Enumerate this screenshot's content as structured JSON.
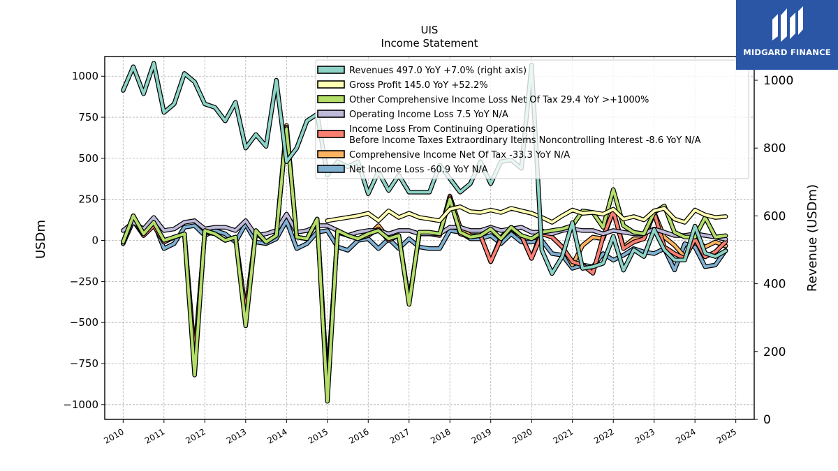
{
  "brand": {
    "name": "MIDGARD FINANCE"
  },
  "chart_data": {
    "type": "line",
    "title": "UIS",
    "subtitle": "Income Statement",
    "ylabel": "USDm",
    "ylabel_right": "Revenue (USDm)",
    "ylim": [
      -1090,
      1120
    ],
    "ylim_right": [
      0,
      1070
    ],
    "xlim": [
      2009.55,
      2025.45
    ],
    "yticks": [
      -1000,
      -750,
      -500,
      -250,
      0,
      250,
      500,
      750,
      1000
    ],
    "yticks_right": [
      0,
      200,
      400,
      600,
      800,
      1000
    ],
    "xticks": [
      "2010",
      "2011",
      "2012",
      "2013",
      "2014",
      "2015",
      "2016",
      "2017",
      "2018",
      "2019",
      "2020",
      "2021",
      "2022",
      "2023",
      "2024",
      "2025"
    ],
    "grid": true,
    "legend_position": "top-right",
    "x": [
      2010.0,
      2010.25,
      2010.5,
      2010.75,
      2011.0,
      2011.25,
      2011.5,
      2011.75,
      2012.0,
      2012.25,
      2012.5,
      2012.75,
      2013.0,
      2013.25,
      2013.5,
      2013.75,
      2014.0,
      2014.25,
      2014.5,
      2014.75,
      2015.0,
      2015.25,
      2015.5,
      2015.75,
      2016.0,
      2016.25,
      2016.5,
      2016.75,
      2017.0,
      2017.25,
      2017.5,
      2017.75,
      2018.0,
      2018.25,
      2018.5,
      2018.75,
      2019.0,
      2019.25,
      2019.5,
      2019.75,
      2020.0,
      2020.25,
      2020.5,
      2020.75,
      2021.0,
      2021.25,
      2021.5,
      2021.75,
      2022.0,
      2022.25,
      2022.5,
      2022.75,
      2023.0,
      2023.25,
      2023.5,
      2023.75,
      2024.0,
      2024.25,
      2024.5,
      2024.75
    ],
    "series": [
      {
        "name": "Revenues",
        "legend": "Revenues  497.0 YoY +7.0% (right axis)",
        "axis": "right",
        "color": "#8dd3c7",
        "values": [
          970,
          1040,
          960,
          1050,
          905,
          930,
          1020,
          995,
          930,
          920,
          880,
          935,
          800,
          840,
          805,
          1000,
          760,
          800,
          880,
          900,
          720,
          760,
          745,
          760,
          665,
          730,
          675,
          720,
          670,
          670,
          670,
          750,
          710,
          670,
          695,
          760,
          695,
          760,
          765,
          740,
          1045,
          500,
          430,
          480,
          580,
          445,
          450,
          460,
          540,
          440,
          500,
          480,
          560,
          500,
          470,
          470,
          570,
          490,
          480,
          497
        ]
      },
      {
        "name": "Gross Profit",
        "legend": "Gross Profit  145.0 YoY +52.2%",
        "color": "#ffffb3",
        "values": [
          null,
          null,
          null,
          null,
          null,
          null,
          null,
          null,
          null,
          null,
          null,
          null,
          null,
          null,
          null,
          null,
          null,
          null,
          null,
          null,
          120,
          130,
          140,
          150,
          165,
          120,
          180,
          140,
          165,
          140,
          130,
          120,
          190,
          205,
          175,
          170,
          185,
          170,
          195,
          180,
          165,
          140,
          110,
          150,
          185,
          165,
          170,
          160,
          190,
          130,
          145,
          125,
          180,
          195,
          130,
          110,
          185,
          155,
          140,
          145
        ]
      },
      {
        "name": "Other Comprehensive Loss Net Of Tax",
        "legend": "Other Comprehensive Income Loss Net Of Tax  29.4 YoY >+1000%",
        "color": "#b3de69",
        "values": [
          -10,
          150,
          40,
          110,
          0,
          20,
          40,
          -820,
          60,
          40,
          0,
          20,
          -520,
          60,
          -10,
          30,
          680,
          20,
          10,
          130,
          -980,
          60,
          30,
          10,
          40,
          60,
          10,
          30,
          -390,
          50,
          50,
          40,
          250,
          50,
          20,
          30,
          70,
          10,
          80,
          30,
          10,
          50,
          60,
          70,
          90,
          180,
          170,
          80,
          310,
          90,
          50,
          40,
          170,
          210,
          50,
          20,
          20,
          140,
          20,
          29
        ]
      },
      {
        "name": "Operating Income Loss",
        "legend": "Operating Income Loss  7.5 YoY N/A",
        "color": "#bebada",
        "values": [
          60,
          110,
          70,
          140,
          60,
          70,
          110,
          120,
          70,
          80,
          80,
          60,
          120,
          30,
          40,
          60,
          160,
          50,
          60,
          90,
          90,
          60,
          30,
          50,
          60,
          60,
          40,
          60,
          60,
          40,
          40,
          40,
          80,
          80,
          60,
          60,
          80,
          60,
          70,
          80,
          50,
          50,
          40,
          60,
          70,
          60,
          60,
          40,
          60,
          50,
          40,
          40,
          70,
          50,
          30,
          30,
          40,
          30,
          20,
          7.5
        ]
      },
      {
        "name": "Income Loss Before Taxes",
        "legend": "Income Loss From Continuing Operations|Before Income Taxes Extraordinary Items Noncontrolling Interest  -8.6 YoY N/A",
        "color": "#fb8072",
        "values": [
          -10,
          140,
          30,
          90,
          -10,
          20,
          40,
          -700,
          50,
          40,
          0,
          20,
          -430,
          50,
          -10,
          30,
          690,
          20,
          10,
          120,
          -880,
          50,
          30,
          10,
          30,
          70,
          0,
          30,
          -380,
          40,
          40,
          30,
          260,
          40,
          20,
          30,
          -130,
          10,
          70,
          30,
          -110,
          40,
          20,
          -40,
          -130,
          -150,
          -200,
          20,
          180,
          -50,
          -10,
          10,
          170,
          -40,
          -80,
          -110,
          10,
          -100,
          -70,
          -8.6
        ]
      },
      {
        "name": "Comprehensive Income Net Of Tax",
        "legend": "Comprehensive Income Net Of Tax  -33.3 YoY N/A",
        "color": "#fdb462",
        "values": [
          -10,
          150,
          30,
          100,
          -10,
          20,
          40,
          -720,
          50,
          40,
          0,
          20,
          -440,
          50,
          -10,
          30,
          700,
          20,
          10,
          130,
          -900,
          50,
          30,
          10,
          30,
          90,
          10,
          30,
          -370,
          40,
          40,
          40,
          270,
          80,
          30,
          30,
          -130,
          20,
          80,
          30,
          -110,
          60,
          20,
          -40,
          -150,
          -30,
          20,
          10,
          180,
          -40,
          10,
          10,
          170,
          20,
          -30,
          -100,
          0,
          -40,
          -10,
          -33.3
        ]
      },
      {
        "name": "Net Income Loss",
        "legend": "Net Income Loss  -60.9 YoY N/A",
        "color": "#80b1d3",
        "values": [
          -20,
          120,
          30,
          110,
          -50,
          -20,
          80,
          90,
          30,
          60,
          40,
          -10,
          100,
          -10,
          -20,
          10,
          120,
          -50,
          -20,
          50,
          60,
          -40,
          -60,
          0,
          10,
          -50,
          10,
          -50,
          10,
          -40,
          -50,
          -50,
          60,
          50,
          10,
          10,
          30,
          -20,
          40,
          -10,
          -10,
          0,
          -80,
          -90,
          -170,
          -150,
          -160,
          -80,
          -120,
          -90,
          -50,
          -70,
          -80,
          -50,
          -180,
          -20,
          -40,
          -160,
          -150,
          -61
        ]
      }
    ]
  }
}
